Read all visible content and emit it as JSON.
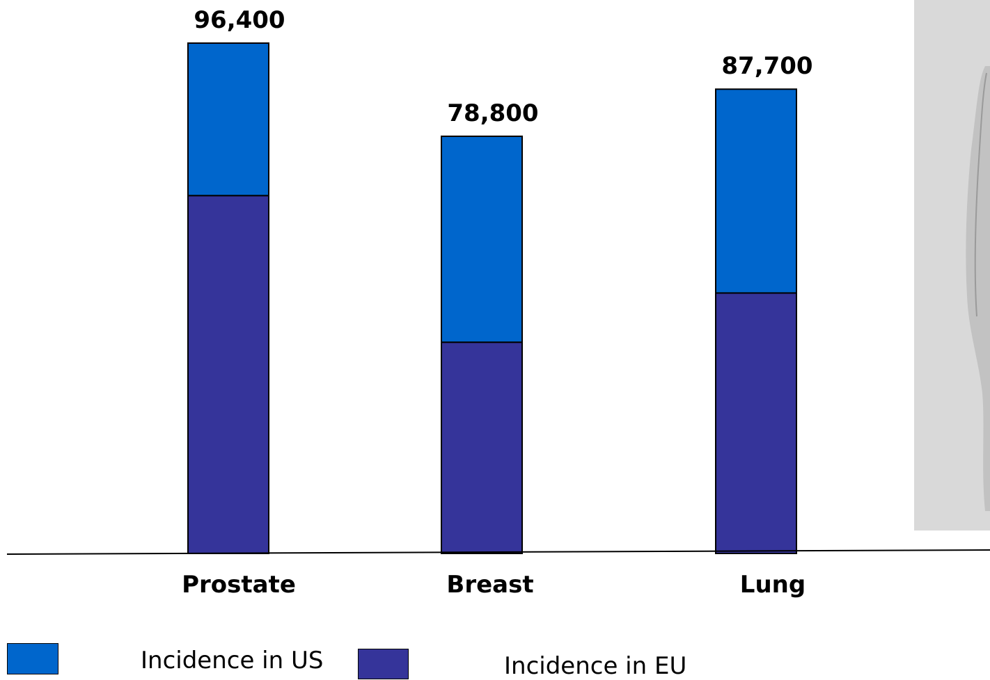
{
  "chart_data": {
    "type": "bar",
    "stacked": true,
    "categories": [
      "Prostate",
      "Breast",
      "Lung"
    ],
    "series": [
      {
        "name": "Incidence in EU",
        "color": "#35349a",
        "values": [
          67600,
          39900,
          49200
        ]
      },
      {
        "name": "Incidence in US",
        "color": "#0066cc",
        "values": [
          28800,
          38900,
          38500
        ]
      }
    ],
    "totals": [
      96400,
      78800,
      87700
    ],
    "total_labels": [
      "96,400",
      "78,800",
      "87,700"
    ],
    "title": "",
    "xlabel": "",
    "ylabel": "",
    "ylim": [
      0,
      100000
    ],
    "grid": false,
    "legend": "bottom"
  },
  "legend": {
    "us_label": "Incidence in US",
    "eu_label": "Incidence in EU"
  },
  "colors": {
    "us": "#0066cc",
    "eu": "#35349a",
    "photo_panel": "#d9d9d9"
  }
}
